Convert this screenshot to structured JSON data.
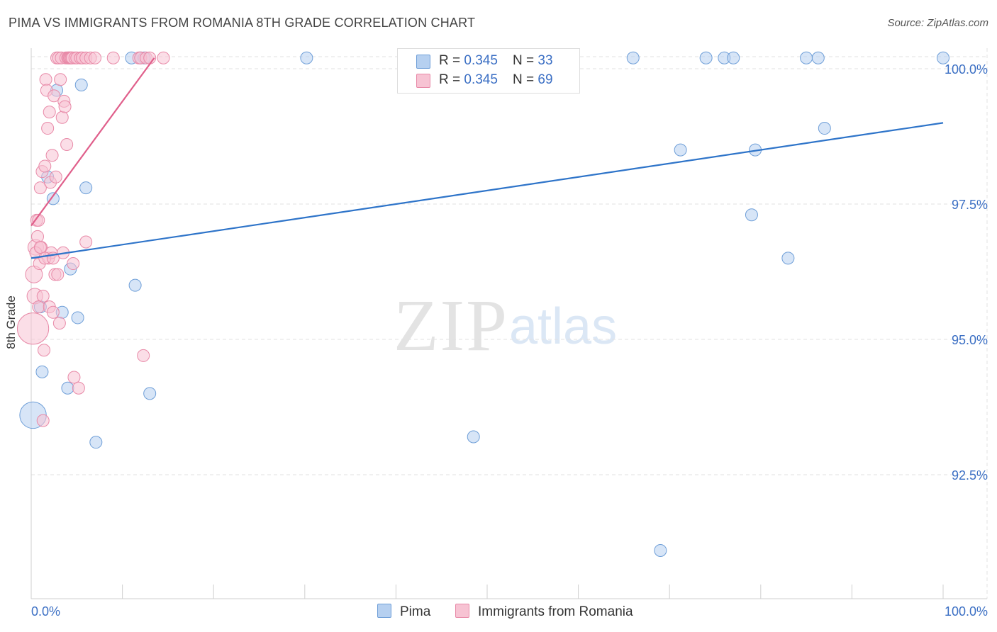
{
  "header": {
    "title": "PIMA VS IMMIGRANTS FROM ROMANIA 8TH GRADE CORRELATION CHART",
    "source": "Source: ZipAtlas.com"
  },
  "watermark": {
    "zip": "ZIP",
    "atlas": "atlas"
  },
  "colors": {
    "pima_fill": "#b6d0f0",
    "pima_stroke": "#6f9fd8",
    "pima_line": "#2e74c9",
    "rom_fill": "#f7c3d3",
    "rom_stroke": "#e88aa8",
    "rom_line": "#e05f8b",
    "tick_text": "#3b6fc4"
  },
  "legend": {
    "rows": [
      {
        "r_label": "R = ",
        "r_value": "0.345",
        "n_label": "N = ",
        "n_value": "33"
      },
      {
        "r_label": "R = ",
        "r_value": "0.345",
        "n_label": "N = ",
        "n_value": "69"
      }
    ]
  },
  "chart_data": {
    "type": "scatter",
    "title": "PIMA VS IMMIGRANTS FROM ROMANIA 8TH GRADE CORRELATION CHART",
    "xlabel": "",
    "ylabel": "8th Grade",
    "xlim": [
      0,
      100
    ],
    "ylim": [
      90.0,
      100.4
    ],
    "x_tick_labels": [
      "0.0%",
      "100.0%"
    ],
    "y_ticks": [
      {
        "value": 100.0,
        "label": "100.0%"
      },
      {
        "value": 97.5,
        "label": "97.5%"
      },
      {
        "value": 95.0,
        "label": "95.0%"
      },
      {
        "value": 92.5,
        "label": "92.5%"
      }
    ],
    "grid": true,
    "legend_position": "top-center",
    "series": [
      {
        "name": "Pima",
        "trend": {
          "x": [
            0,
            100
          ],
          "y": [
            96.5,
            99.0
          ]
        },
        "points": [
          {
            "x": 0.2,
            "y": 93.6,
            "s": 2.2
          },
          {
            "x": 1.2,
            "y": 94.4,
            "s": 1
          },
          {
            "x": 1.0,
            "y": 95.6,
            "s": 1
          },
          {
            "x": 2.4,
            "y": 97.6,
            "s": 1
          },
          {
            "x": 1.8,
            "y": 98.0,
            "s": 1
          },
          {
            "x": 2.8,
            "y": 99.6,
            "s": 1
          },
          {
            "x": 5.5,
            "y": 99.7,
            "s": 1
          },
          {
            "x": 3.4,
            "y": 95.5,
            "s": 1
          },
          {
            "x": 4.0,
            "y": 94.1,
            "s": 1
          },
          {
            "x": 5.1,
            "y": 95.4,
            "s": 1
          },
          {
            "x": 4.3,
            "y": 96.3,
            "s": 1
          },
          {
            "x": 6.0,
            "y": 97.8,
            "s": 1
          },
          {
            "x": 7.1,
            "y": 93.1,
            "s": 1
          },
          {
            "x": 11.4,
            "y": 96.0,
            "s": 1
          },
          {
            "x": 13.0,
            "y": 94.0,
            "s": 1
          },
          {
            "x": 11.0,
            "y": 100.2,
            "s": 1
          },
          {
            "x": 12.0,
            "y": 100.2,
            "s": 1
          },
          {
            "x": 12.4,
            "y": 100.2,
            "s": 1
          },
          {
            "x": 30.2,
            "y": 100.2,
            "s": 1
          },
          {
            "x": 48.5,
            "y": 93.2,
            "s": 1
          },
          {
            "x": 69.0,
            "y": 91.1,
            "s": 1
          },
          {
            "x": 66.0,
            "y": 100.2,
            "s": 1
          },
          {
            "x": 71.2,
            "y": 98.5,
            "s": 1
          },
          {
            "x": 74.0,
            "y": 100.2,
            "s": 1
          },
          {
            "x": 76.0,
            "y": 100.2,
            "s": 1
          },
          {
            "x": 77.0,
            "y": 100.2,
            "s": 1
          },
          {
            "x": 79.0,
            "y": 97.3,
            "s": 1
          },
          {
            "x": 79.4,
            "y": 98.5,
            "s": 1
          },
          {
            "x": 83.0,
            "y": 96.5,
            "s": 1
          },
          {
            "x": 85.0,
            "y": 100.2,
            "s": 1
          },
          {
            "x": 86.3,
            "y": 100.2,
            "s": 1
          },
          {
            "x": 87.0,
            "y": 98.9,
            "s": 1
          },
          {
            "x": 100.0,
            "y": 100.2,
            "s": 1
          }
        ]
      },
      {
        "name": "Immigrants from Romania",
        "trend": {
          "x": [
            0,
            13.5
          ],
          "y": [
            97.1,
            100.2
          ]
        },
        "points": [
          {
            "x": 0.2,
            "y": 95.2,
            "s": 2.6
          },
          {
            "x": 0.3,
            "y": 96.2,
            "s": 1.4
          },
          {
            "x": 0.4,
            "y": 95.8,
            "s": 1.3
          },
          {
            "x": 0.5,
            "y": 96.7,
            "s": 1.3
          },
          {
            "x": 0.6,
            "y": 97.2,
            "s": 1
          },
          {
            "x": 0.7,
            "y": 96.9,
            "s": 1
          },
          {
            "x": 0.8,
            "y": 95.6,
            "s": 1
          },
          {
            "x": 0.9,
            "y": 96.4,
            "s": 1
          },
          {
            "x": 1.0,
            "y": 97.8,
            "s": 1
          },
          {
            "x": 1.1,
            "y": 96.7,
            "s": 1
          },
          {
            "x": 1.2,
            "y": 98.1,
            "s": 1
          },
          {
            "x": 1.3,
            "y": 95.8,
            "s": 1
          },
          {
            "x": 1.3,
            "y": 93.5,
            "s": 1
          },
          {
            "x": 1.4,
            "y": 94.8,
            "s": 1
          },
          {
            "x": 1.5,
            "y": 98.2,
            "s": 1
          },
          {
            "x": 1.6,
            "y": 99.8,
            "s": 1
          },
          {
            "x": 1.7,
            "y": 99.6,
            "s": 1
          },
          {
            "x": 1.8,
            "y": 98.9,
            "s": 1
          },
          {
            "x": 1.9,
            "y": 96.5,
            "s": 1
          },
          {
            "x": 2.0,
            "y": 95.6,
            "s": 1
          },
          {
            "x": 2.0,
            "y": 99.2,
            "s": 1
          },
          {
            "x": 2.1,
            "y": 97.9,
            "s": 1
          },
          {
            "x": 2.2,
            "y": 96.6,
            "s": 1
          },
          {
            "x": 2.3,
            "y": 98.4,
            "s": 1
          },
          {
            "x": 2.4,
            "y": 95.5,
            "s": 1
          },
          {
            "x": 2.5,
            "y": 99.5,
            "s": 1
          },
          {
            "x": 2.6,
            "y": 96.2,
            "s": 1
          },
          {
            "x": 2.7,
            "y": 98.0,
            "s": 1
          },
          {
            "x": 2.8,
            "y": 100.2,
            "s": 1
          },
          {
            "x": 2.9,
            "y": 96.2,
            "s": 1
          },
          {
            "x": 3.0,
            "y": 100.2,
            "s": 1
          },
          {
            "x": 3.1,
            "y": 95.3,
            "s": 1
          },
          {
            "x": 3.2,
            "y": 99.8,
            "s": 1
          },
          {
            "x": 3.3,
            "y": 100.2,
            "s": 1
          },
          {
            "x": 3.4,
            "y": 99.1,
            "s": 1
          },
          {
            "x": 3.5,
            "y": 96.6,
            "s": 1
          },
          {
            "x": 3.6,
            "y": 99.4,
            "s": 1
          },
          {
            "x": 3.7,
            "y": 99.3,
            "s": 1
          },
          {
            "x": 3.8,
            "y": 100.2,
            "s": 1
          },
          {
            "x": 3.9,
            "y": 98.6,
            "s": 1
          },
          {
            "x": 4.0,
            "y": 100.2,
            "s": 1
          },
          {
            "x": 4.1,
            "y": 100.2,
            "s": 1
          },
          {
            "x": 4.2,
            "y": 100.2,
            "s": 1
          },
          {
            "x": 4.3,
            "y": 100.2,
            "s": 1
          },
          {
            "x": 4.4,
            "y": 100.2,
            "s": 1
          },
          {
            "x": 4.5,
            "y": 100.2,
            "s": 1
          },
          {
            "x": 4.6,
            "y": 96.4,
            "s": 1
          },
          {
            "x": 4.7,
            "y": 94.3,
            "s": 1
          },
          {
            "x": 4.8,
            "y": 100.2,
            "s": 1
          },
          {
            "x": 5.0,
            "y": 100.2,
            "s": 1
          },
          {
            "x": 5.2,
            "y": 94.1,
            "s": 1
          },
          {
            "x": 5.4,
            "y": 100.2,
            "s": 1
          },
          {
            "x": 5.6,
            "y": 100.2,
            "s": 1
          },
          {
            "x": 6.0,
            "y": 100.2,
            "s": 1
          },
          {
            "x": 6.0,
            "y": 96.8,
            "s": 1
          },
          {
            "x": 6.5,
            "y": 100.2,
            "s": 1
          },
          {
            "x": 7.0,
            "y": 100.2,
            "s": 1
          },
          {
            "x": 9.0,
            "y": 100.2,
            "s": 1
          },
          {
            "x": 11.8,
            "y": 100.2,
            "s": 1
          },
          {
            "x": 12.0,
            "y": 100.2,
            "s": 1
          },
          {
            "x": 12.3,
            "y": 94.7,
            "s": 1
          },
          {
            "x": 12.6,
            "y": 100.2,
            "s": 1
          },
          {
            "x": 13.0,
            "y": 100.2,
            "s": 1
          },
          {
            "x": 14.5,
            "y": 100.2,
            "s": 1
          },
          {
            "x": 0.5,
            "y": 96.6,
            "s": 1
          },
          {
            "x": 1.0,
            "y": 96.7,
            "s": 1
          },
          {
            "x": 1.5,
            "y": 96.5,
            "s": 1
          },
          {
            "x": 2.4,
            "y": 96.5,
            "s": 1
          },
          {
            "x": 0.8,
            "y": 97.2,
            "s": 1
          }
        ]
      }
    ]
  },
  "bottom_legend": {
    "items": [
      "Pima",
      "Immigrants from Romania"
    ]
  }
}
